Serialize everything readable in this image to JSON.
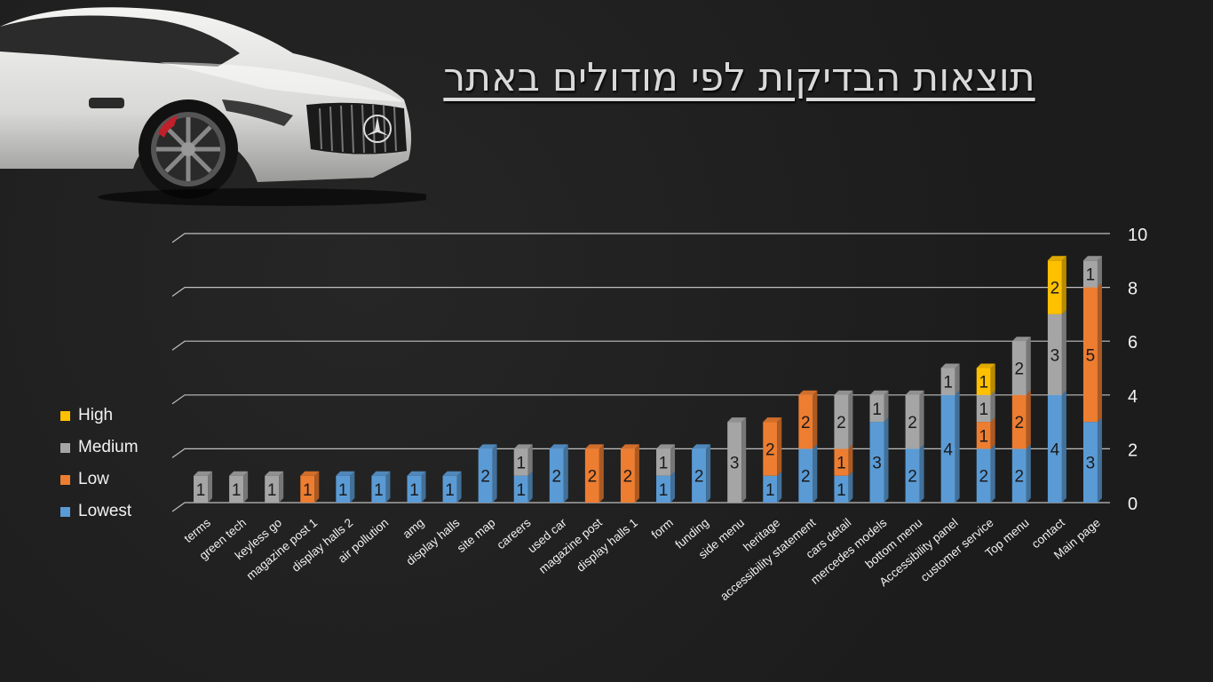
{
  "title": "תוצאות הבדיקות לפי מודולים באתר",
  "colors": {
    "High": "#ffc000",
    "Medium": "#a5a5a5",
    "Low": "#ed7d31",
    "Lowest": "#5b9bd5"
  },
  "legend": [
    {
      "name": "High"
    },
    {
      "name": "Medium"
    },
    {
      "name": "Low"
    },
    {
      "name": "Lowest"
    }
  ],
  "chart_data": {
    "type": "bar",
    "stacked": true,
    "ylim": [
      0,
      10
    ],
    "yticks": [
      "0",
      "2",
      "4",
      "6",
      "8",
      "10"
    ],
    "y_axis_side": "right",
    "legend_position": "left",
    "grid": true,
    "categories": [
      "terms",
      "green tech",
      "keyless go",
      "magazine post 1",
      "display halls 2",
      "air pollution",
      "amg",
      "display halls",
      "site map",
      "careers",
      "used car",
      "magazine post",
      "display halls 1",
      "form",
      "funding",
      "side menu",
      "heritage",
      "accessibility  statement",
      "cars detail",
      "mercedes models",
      "bottom menu",
      "Accessibility panel",
      "customer service",
      "Top menu",
      "contact",
      "Main page"
    ],
    "series": [
      {
        "name": "Lowest",
        "values": [
          0,
          0,
          0,
          0,
          1,
          1,
          1,
          1,
          2,
          1,
          2,
          0,
          0,
          1,
          2,
          0,
          1,
          2,
          1,
          3,
          2,
          4,
          2,
          2,
          4,
          3
        ]
      },
      {
        "name": "Low",
        "values": [
          0,
          0,
          0,
          1,
          0,
          0,
          0,
          0,
          0,
          0,
          0,
          2,
          2,
          0,
          0,
          0,
          2,
          2,
          1,
          0,
          0,
          0,
          1,
          2,
          0,
          5
        ]
      },
      {
        "name": "Medium",
        "values": [
          1,
          1,
          1,
          0,
          0,
          0,
          0,
          0,
          0,
          1,
          0,
          0,
          0,
          1,
          0,
          3,
          0,
          0,
          2,
          1,
          2,
          1,
          1,
          2,
          3,
          1
        ]
      },
      {
        "name": "High",
        "values": [
          0,
          0,
          0,
          0,
          0,
          0,
          0,
          0,
          0,
          0,
          0,
          0,
          0,
          0,
          0,
          0,
          0,
          0,
          0,
          0,
          0,
          0,
          1,
          0,
          2,
          0
        ]
      }
    ]
  }
}
